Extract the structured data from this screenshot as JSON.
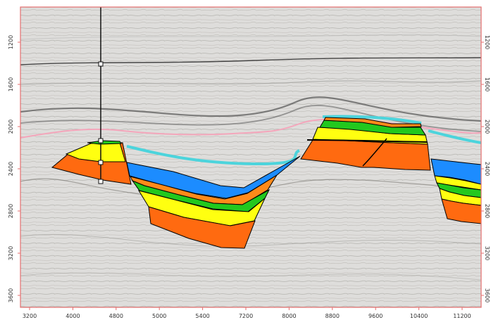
{
  "axes": {
    "x_ticks": [
      "3200",
      "4000",
      "4800",
      "5000",
      "5400",
      "7200",
      "8000",
      "8800",
      "9600",
      "10400",
      "11200"
    ],
    "left_ticks": [
      "1200",
      "1600",
      "2000",
      "2400",
      "2800",
      "3200",
      "3600"
    ],
    "right_ticks": [
      "1200",
      "1600",
      "2000",
      "2400",
      "2800",
      "3200",
      "3600"
    ]
  },
  "colors": {
    "frame": "#e46f6f",
    "orange": "#ff6a10",
    "yellow": "#ffff10",
    "green": "#22c81e",
    "blue": "#1c8cff",
    "cyan": "#4cd4dc",
    "pink": "#f4a6bb",
    "dark_horizon": "#2f2f2f"
  },
  "well": {
    "marker_count": 4
  }
}
